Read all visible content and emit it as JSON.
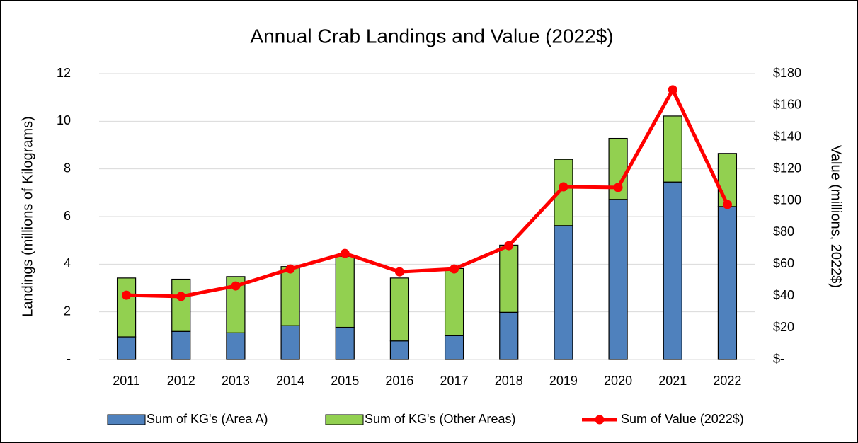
{
  "chart_data": {
    "type": "bar",
    "stacked": true,
    "title": "Annual Crab Landings and Value (2022$)",
    "ylabel": "Landings (millions of Kilograms)",
    "y2label": "Value (millions, 2022$)",
    "categories": [
      "2011",
      "2012",
      "2013",
      "2014",
      "2015",
      "2016",
      "2017",
      "2018",
      "2019",
      "2020",
      "2021",
      "2022"
    ],
    "series": [
      {
        "name": "Sum of KG's (Area A)",
        "color": "#4f81bd",
        "type": "bar",
        "values": [
          0.95,
          1.18,
          1.12,
          1.42,
          1.35,
          0.78,
          1.0,
          1.98,
          5.62,
          6.72,
          7.45,
          6.42
        ]
      },
      {
        "name": "Sum of KG's (Other Areas)",
        "color": "#92d050",
        "type": "bar",
        "values": [
          2.47,
          2.19,
          2.36,
          2.48,
          2.98,
          2.64,
          2.82,
          2.82,
          2.78,
          2.56,
          2.77,
          2.23
        ]
      },
      {
        "name": "Sum of Value (2022$)",
        "color": "#ff0000",
        "type": "line",
        "axis": "y2",
        "values": [
          40.5,
          39.7,
          46.3,
          57,
          66.8,
          55.2,
          57,
          71.7,
          108.7,
          108.3,
          169.8,
          97.6
        ]
      }
    ],
    "ylim": [
      0,
      12
    ],
    "yticks": [
      {
        "value": 0,
        "label": "-"
      },
      2,
      4,
      6,
      8,
      10,
      12
    ],
    "y2lim": [
      0,
      180
    ],
    "y2ticks": [
      {
        "value": 0,
        "label": "$-"
      },
      {
        "value": 20,
        "label": "$20"
      },
      {
        "value": 40,
        "label": "$40"
      },
      {
        "value": 60,
        "label": "$60"
      },
      {
        "value": 80,
        "label": "$80"
      },
      {
        "value": 100,
        "label": "$100"
      },
      {
        "value": 120,
        "label": "$120"
      },
      {
        "value": 140,
        "label": "$140"
      },
      {
        "value": 160,
        "label": "$160"
      },
      {
        "value": 180,
        "label": "$180"
      }
    ],
    "grid": true,
    "legend": "bottom"
  }
}
